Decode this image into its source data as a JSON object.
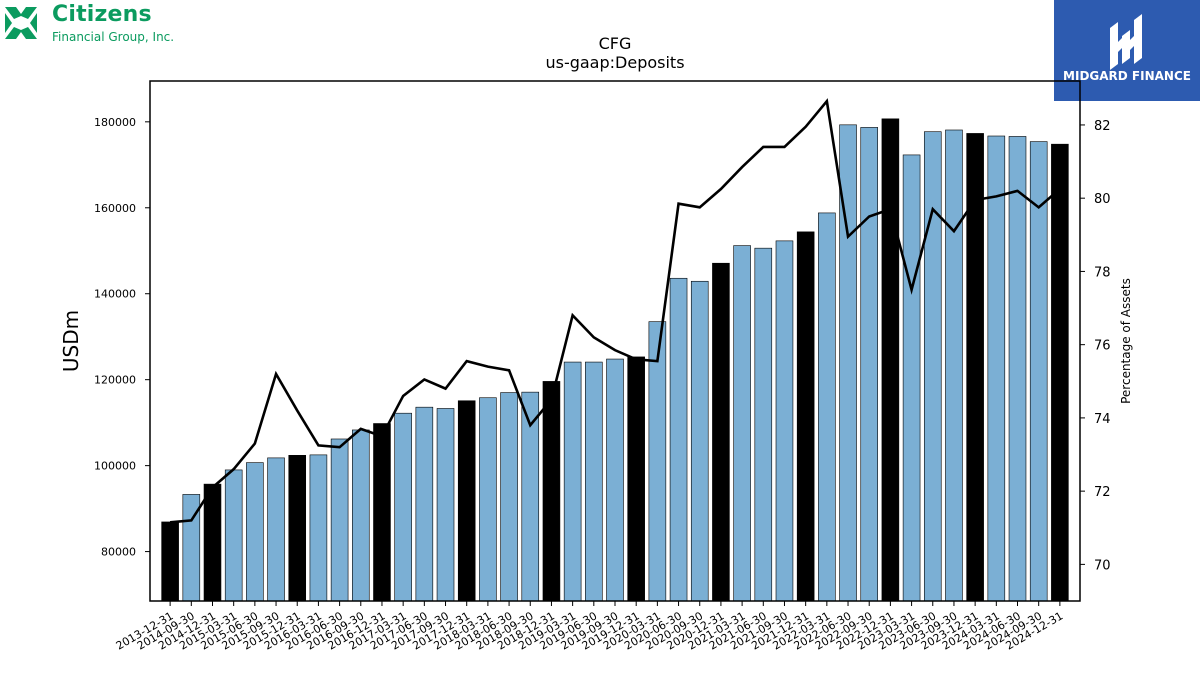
{
  "brand": {
    "name": "Citizens",
    "subtitle": "Financial Group, Inc.",
    "color": "#0b9b5f"
  },
  "watermark": {
    "name": "MIDGARD FINANCE",
    "color": "#2d5bb0"
  },
  "chart_data": {
    "type": "bar",
    "title": "CFG",
    "subtitle": "us-gaap:Deposits",
    "ylabel": "USDm",
    "y2label": "Percentage of Assets",
    "ylim": [
      68500,
      189500
    ],
    "y2lim": [
      69.0,
      83.2
    ],
    "yticks": [
      80000,
      100000,
      120000,
      140000,
      160000,
      180000
    ],
    "y2ticks": [
      70,
      72,
      74,
      76,
      78,
      80,
      82
    ],
    "bar_color": "#7bafd4",
    "highlight_color": "#000000",
    "line_color": "#000000",
    "grid": false,
    "categories": [
      "2013-12-31",
      "2014-09-30",
      "2014-12-31",
      "2015-03-31",
      "2015-06-30",
      "2015-09-30",
      "2015-12-31",
      "2016-03-31",
      "2016-06-30",
      "2016-09-30",
      "2016-12-31",
      "2017-03-31",
      "2017-06-30",
      "2017-09-30",
      "2017-12-31",
      "2018-03-31",
      "2018-06-30",
      "2018-09-30",
      "2018-12-31",
      "2019-03-31",
      "2019-06-30",
      "2019-09-30",
      "2019-12-31",
      "2020-03-31",
      "2020-06-30",
      "2020-09-30",
      "2020-12-31",
      "2021-03-31",
      "2021-06-30",
      "2021-09-30",
      "2021-12-31",
      "2022-03-31",
      "2022-06-30",
      "2022-09-30",
      "2022-12-31",
      "2023-03-31",
      "2023-06-30",
      "2023-09-30",
      "2023-12-31",
      "2024-03-31",
      "2024-06-30",
      "2024-09-30",
      "2024-12-31"
    ],
    "series": [
      {
        "name": "Deposits (USDm)",
        "axis": "left",
        "kind": "bar",
        "values": [
          86900,
          93300,
          95700,
          99000,
          100700,
          101800,
          102400,
          102500,
          106200,
          108300,
          109800,
          112200,
          113600,
          113300,
          115100,
          115800,
          117000,
          117100,
          119600,
          124100,
          124100,
          124800,
          125300,
          133500,
          143600,
          142900,
          147100,
          151200,
          150600,
          152300,
          154400,
          158800,
          179300,
          178700,
          180700,
          172300,
          177700,
          178100,
          177300,
          176700,
          176600,
          175400,
          174800
        ],
        "highlight": [
          true,
          false,
          true,
          false,
          false,
          false,
          true,
          false,
          false,
          false,
          true,
          false,
          false,
          false,
          true,
          false,
          false,
          false,
          true,
          false,
          false,
          false,
          true,
          false,
          false,
          false,
          true,
          false,
          false,
          false,
          true,
          false,
          false,
          false,
          true,
          false,
          false,
          false,
          true,
          false,
          false,
          false,
          true
        ]
      },
      {
        "name": "Percentage of Assets",
        "axis": "right",
        "kind": "line",
        "values": [
          71.15,
          71.2,
          72.1,
          72.6,
          73.3,
          75.2,
          74.2,
          73.25,
          73.2,
          73.7,
          73.5,
          74.6,
          75.05,
          74.8,
          75.55,
          75.4,
          75.3,
          73.8,
          74.5,
          76.8,
          76.2,
          75.85,
          75.6,
          75.55,
          79.85,
          79.75,
          80.25,
          80.85,
          81.4,
          81.4,
          81.95,
          82.65,
          78.95,
          79.5,
          79.7,
          77.5,
          79.7,
          79.1,
          79.95,
          80.05,
          80.2,
          79.75,
          80.25
        ]
      }
    ]
  }
}
